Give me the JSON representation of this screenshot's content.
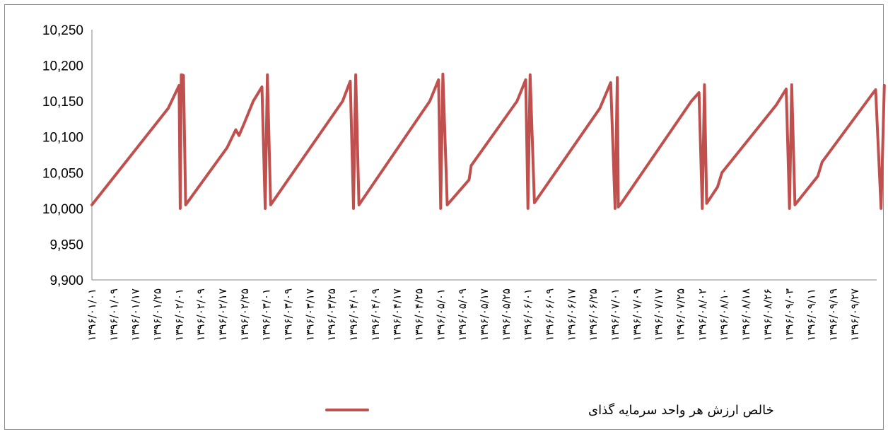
{
  "chart_data": {
    "type": "line",
    "title": "",
    "xlabel": "",
    "ylabel": "",
    "ylim": [
      9900,
      10250
    ],
    "y_ticks": [
      "10,250",
      "10,200",
      "10,150",
      "10,100",
      "10,050",
      "10,000",
      "9,950",
      "9,900"
    ],
    "y_tick_values": [
      10250,
      10200,
      10150,
      10100,
      10050,
      10000,
      9950,
      9900
    ],
    "grid": false,
    "legend_position": "bottom",
    "x_tick_labels": [
      "۱۳۹۶/۰۱/۰۱",
      "۱۳۹۶/۰۱/۰۹",
      "۱۳۹۶/۰۱/۱۷",
      "۱۳۹۶/۰۱/۲۵",
      "۱۳۹۶/۰۲/۰۱",
      "۱۳۹۶/۰۲/۰۹",
      "۱۳۹۶/۰۲/۱۷",
      "۱۳۹۶/۰۲/۲۵",
      "۱۳۹۶/۰۳/۰۱",
      "۱۳۹۶/۰۳/۰۹",
      "۱۳۹۶/۰۳/۱۷",
      "۱۳۹۶/۰۳/۲۵",
      "۱۳۹۶/۰۴/۰۱",
      "۱۳۹۶/۰۴/۰۹",
      "۱۳۹۶/۰۴/۱۷",
      "۱۳۹۶/۰۴/۲۵",
      "۱۳۹۶/۰۵/۰۱",
      "۱۳۹۶/۰۵/۰۹",
      "۱۳۹۶/۰۵/۱۷",
      "۱۳۹۶/۰۵/۲۵",
      "۱۳۹۶/۰۶/۰۱",
      "۱۳۹۶/۰۶/۰۹",
      "۱۳۹۶/۰۶/۱۷",
      "۱۳۹۶/۰۶/۲۵",
      "۱۳۹۶/۰۷/۰۱",
      "۱۳۹۶/۰۷/۰۹",
      "۱۳۹۶/۰۷/۱۷",
      "۱۳۹۶/۰۷/۲۵",
      "۱۳۹۶/۰۸/۰۲",
      "۱۳۹۶/۰۸/۱۰",
      "۱۳۹۶/۰۸/۱۸",
      "۱۳۹۶/۰۸/۲۶",
      "۱۳۹۶/۰۹/۰۳",
      "۱۳۹۶/۰۹/۱۱",
      "۱۳۹۶/۰۹/۱۹",
      "۱۳۹۶/۰۹/۲۷"
    ],
    "series": [
      {
        "name": "خالص ارزش هر واحد سرمایه گذای",
        "color": "#C0504D",
        "points": [
          [
            0,
            10005
          ],
          [
            3.5,
            10140
          ],
          [
            4.0,
            10172
          ],
          [
            4.05,
            10000
          ],
          [
            4.1,
            10187
          ],
          [
            4.2,
            10186
          ],
          [
            4.3,
            10005
          ],
          [
            6.2,
            10085
          ],
          [
            6.6,
            10110
          ],
          [
            6.75,
            10102
          ],
          [
            7.0,
            10120
          ],
          [
            7.4,
            10150
          ],
          [
            7.8,
            10170
          ],
          [
            7.95,
            10000
          ],
          [
            8.05,
            10187
          ],
          [
            8.2,
            10005
          ],
          [
            11.5,
            10150
          ],
          [
            11.85,
            10178
          ],
          [
            12.0,
            10000
          ],
          [
            12.1,
            10187
          ],
          [
            12.25,
            10005
          ],
          [
            15.5,
            10150
          ],
          [
            15.9,
            10180
          ],
          [
            16.0,
            10000
          ],
          [
            16.1,
            10188
          ],
          [
            16.3,
            10005
          ],
          [
            17.3,
            10040
          ],
          [
            17.4,
            10060
          ],
          [
            19.5,
            10150
          ],
          [
            19.9,
            10180
          ],
          [
            20.0,
            10000
          ],
          [
            20.1,
            10187
          ],
          [
            20.3,
            10008
          ],
          [
            23.3,
            10140
          ],
          [
            23.8,
            10176
          ],
          [
            24.0,
            10000
          ],
          [
            24.1,
            10183
          ],
          [
            24.15,
            10002
          ],
          [
            24.3,
            10008
          ],
          [
            27.5,
            10150
          ],
          [
            27.85,
            10162
          ],
          [
            28.0,
            10000
          ],
          [
            28.1,
            10173
          ],
          [
            28.2,
            10007
          ],
          [
            28.7,
            10030
          ],
          [
            28.9,
            10050
          ],
          [
            31.4,
            10145
          ],
          [
            31.85,
            10167
          ],
          [
            32.0,
            10000
          ],
          [
            32.1,
            10173
          ],
          [
            32.25,
            10005
          ],
          [
            33.3,
            10045
          ],
          [
            33.5,
            10065
          ],
          [
            35.8,
            10160
          ],
          [
            35.95,
            10166
          ],
          [
            36.2,
            10000
          ],
          [
            36.35,
            10172
          ]
        ]
      }
    ]
  }
}
